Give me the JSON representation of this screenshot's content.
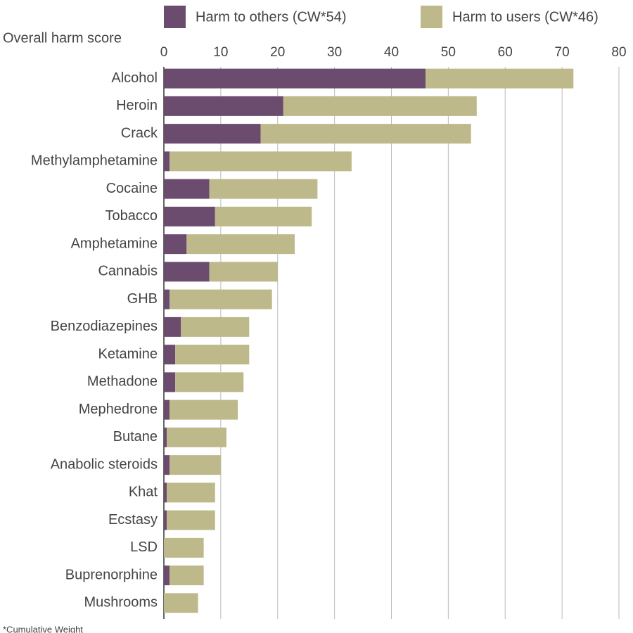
{
  "chart_data": {
    "type": "bar",
    "orientation": "horizontal",
    "stacked": true,
    "x_label": "Overall harm score",
    "footnote": "*Cumulative Weight",
    "categories": [
      "Alcohol",
      "Heroin",
      "Crack",
      "Methylamphetamine",
      "Cocaine",
      "Tobacco",
      "Amphetamine",
      "Cannabis",
      "GHB",
      "Benzodiazepines",
      "Ketamine",
      "Methadone",
      "Mephedrone",
      "Butane",
      "Anabolic steroids",
      "Khat",
      "Ecstasy",
      "LSD",
      "Buprenorphine",
      "Mushrooms"
    ],
    "series": [
      {
        "name": "Harm to others (CW*54)",
        "color": "#6b4c6e",
        "values": [
          46,
          21,
          17,
          1,
          8,
          9,
          4,
          8,
          1,
          3,
          2,
          2,
          1,
          0.5,
          1,
          0.5,
          0.5,
          0,
          1,
          0
        ]
      },
      {
        "name": "Harm to users (CW*46)",
        "color": "#bdb98a",
        "values": [
          26,
          34,
          37,
          32,
          19,
          17,
          19,
          12,
          18,
          12,
          13,
          12,
          12,
          10.5,
          9,
          8.5,
          8.5,
          7,
          6,
          6
        ]
      }
    ],
    "xlim": [
      0,
      80
    ],
    "xticks": [
      0,
      10,
      20,
      30,
      40,
      50,
      60,
      70,
      80
    ],
    "grid": true,
    "legend": "top"
  }
}
